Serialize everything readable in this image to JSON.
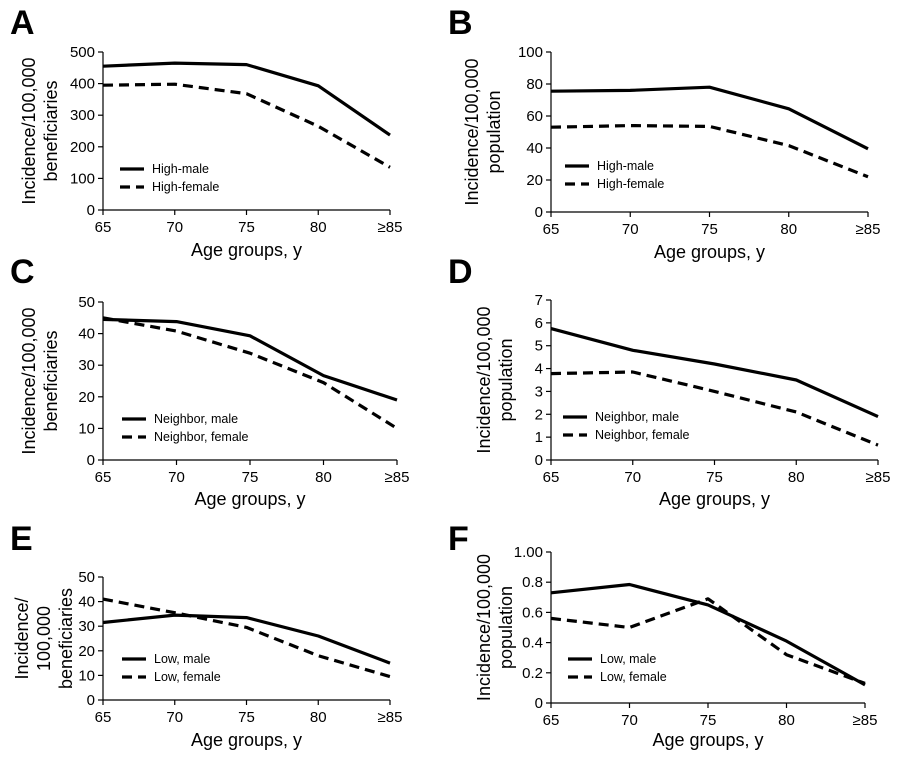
{
  "chart_data": [
    {
      "panel": "A",
      "type": "line",
      "categories": [
        "65",
        "70",
        "75",
        "80",
        "≥85"
      ],
      "ylim": [
        0,
        500
      ],
      "yticks": [
        "0",
        "100",
        "200",
        "300",
        "400",
        "500"
      ],
      "xlabel": "Age groups, y",
      "ylabel_lines": [
        "Incidence/100,000",
        "beneficiaries"
      ],
      "legend_position": "bottom-left",
      "series": [
        {
          "name": "High-male",
          "style": "solid",
          "values": [
            455,
            465,
            460,
            393,
            237
          ]
        },
        {
          "name": "High-female",
          "style": "dashed",
          "values": [
            395,
            398,
            368,
            265,
            135
          ]
        }
      ]
    },
    {
      "panel": "B",
      "type": "line",
      "categories": [
        "65",
        "70",
        "75",
        "80",
        "≥85"
      ],
      "ylim": [
        0,
        100
      ],
      "yticks": [
        "0",
        "20",
        "40",
        "60",
        "80",
        "100"
      ],
      "xlabel": "Age groups, y",
      "ylabel_lines": [
        "Incidence/100,000",
        "population"
      ],
      "legend_position": "bottom-left",
      "series": [
        {
          "name": "High-male",
          "style": "solid",
          "values": [
            75.5,
            76,
            78,
            64.5,
            39.5
          ]
        },
        {
          "name": "High-female",
          "style": "dashed",
          "values": [
            53,
            54,
            53.5,
            41.5,
            22
          ]
        }
      ]
    },
    {
      "panel": "C",
      "type": "line",
      "categories": [
        "65",
        "70",
        "75",
        "80",
        "≥85"
      ],
      "ylim": [
        0,
        50
      ],
      "yticks": [
        "0",
        "10",
        "20",
        "30",
        "40",
        "50"
      ],
      "xlabel": "Age groups, y",
      "ylabel_lines": [
        "Incidence/100,000",
        "beneficiaries"
      ],
      "legend_position": "bottom-left",
      "series": [
        {
          "name": "Neighbor, male",
          "style": "solid",
          "values": [
            44.5,
            43.8,
            39.3,
            26.7,
            19
          ]
        },
        {
          "name": "Neighbor, female",
          "style": "dashed",
          "values": [
            45,
            40.8,
            33.8,
            24.5,
            10
          ]
        }
      ]
    },
    {
      "panel": "D",
      "type": "line",
      "categories": [
        "65",
        "70",
        "75",
        "80",
        "≥85"
      ],
      "ylim": [
        0,
        7
      ],
      "yticks": [
        "0",
        "1",
        "2",
        "3",
        "4",
        "5",
        "6",
        "7"
      ],
      "xlabel": "Age groups, y",
      "ylabel_lines": [
        "Incidence/100,000",
        "population"
      ],
      "legend_position": "bottom-left",
      "series": [
        {
          "name": "Neighbor, male",
          "style": "solid",
          "values": [
            5.75,
            4.8,
            4.2,
            3.5,
            1.9
          ]
        },
        {
          "name": "Neighbor, female",
          "style": "dashed",
          "values": [
            3.78,
            3.85,
            3.0,
            2.1,
            0.65
          ]
        }
      ]
    },
    {
      "panel": "E",
      "type": "line",
      "categories": [
        "65",
        "70",
        "75",
        "80",
        "≥85"
      ],
      "ylim": [
        0,
        50
      ],
      "yticks": [
        "0",
        "10",
        "20",
        "30",
        "40",
        "50"
      ],
      "xlabel": "Age groups, y",
      "ylabel_lines": [
        "Incidence/",
        "100,000",
        "beneficiaries"
      ],
      "legend_position": "bottom-left",
      "series": [
        {
          "name": "Low, male",
          "style": "solid",
          "values": [
            31.5,
            34.5,
            33.5,
            26,
            15
          ]
        },
        {
          "name": "Low, female",
          "style": "dashed",
          "values": [
            41,
            35.5,
            29.5,
            18,
            9.5
          ]
        }
      ]
    },
    {
      "panel": "F",
      "type": "line",
      "categories": [
        "65",
        "70",
        "75",
        "80",
        "≥85"
      ],
      "ylim": [
        0,
        1
      ],
      "yticks": [
        "0",
        "0.2",
        "0.4",
        "0.6",
        "0.8",
        "1.00"
      ],
      "xlabel": "Age groups, y",
      "ylabel_lines": [
        "Incidence/100,000",
        "population"
      ],
      "legend_position": "bottom-left",
      "series": [
        {
          "name": "Low, male",
          "style": "solid",
          "values": [
            0.73,
            0.785,
            0.65,
            0.41,
            0.12
          ]
        },
        {
          "name": "Low, female",
          "style": "dashed",
          "values": [
            0.56,
            0.5,
            0.69,
            0.32,
            0.13
          ]
        }
      ]
    }
  ]
}
